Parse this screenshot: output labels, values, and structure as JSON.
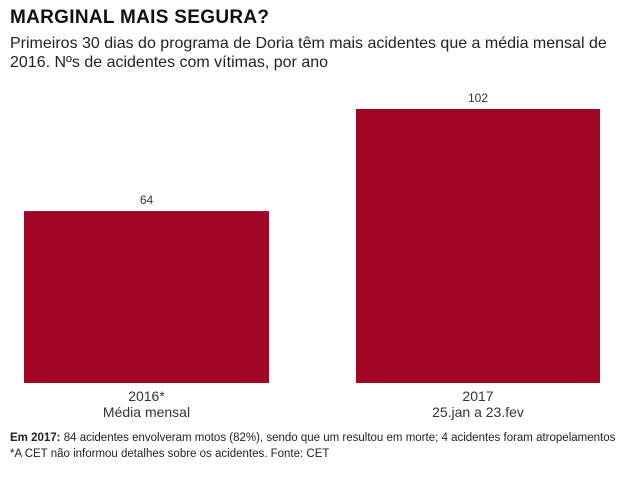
{
  "header": {
    "title": "MARGINAL MAIS SEGURA?",
    "subtitle": "Primeiros 30 dias do programa de Doria têm mais acidentes que a média mensal de 2016. Nºs de acidentes com vítimas, por ano"
  },
  "chart_data": {
    "type": "bar",
    "categories": [
      "2016*",
      "2017"
    ],
    "category_sublabels": [
      "Média mensal",
      "25.jan a 23.fev"
    ],
    "values": [
      64,
      102
    ],
    "data_labels": [
      "64",
      "102"
    ],
    "title": "MARGINAL MAIS SEGURA?",
    "xlabel": "",
    "ylabel": "",
    "ylim": [
      0,
      102
    ],
    "grid": false,
    "legend": "none",
    "bar_color": "#A10624"
  },
  "footnotes": {
    "note_bold": "Em 2017:",
    "note_text": " 84 acidentes envolveram motos (82%), sendo que um resultou em morte; 4 acidentes foram atropelamentos",
    "source": "*A CET não informou detalhes sobre os acidentes. Fonte: CET"
  }
}
